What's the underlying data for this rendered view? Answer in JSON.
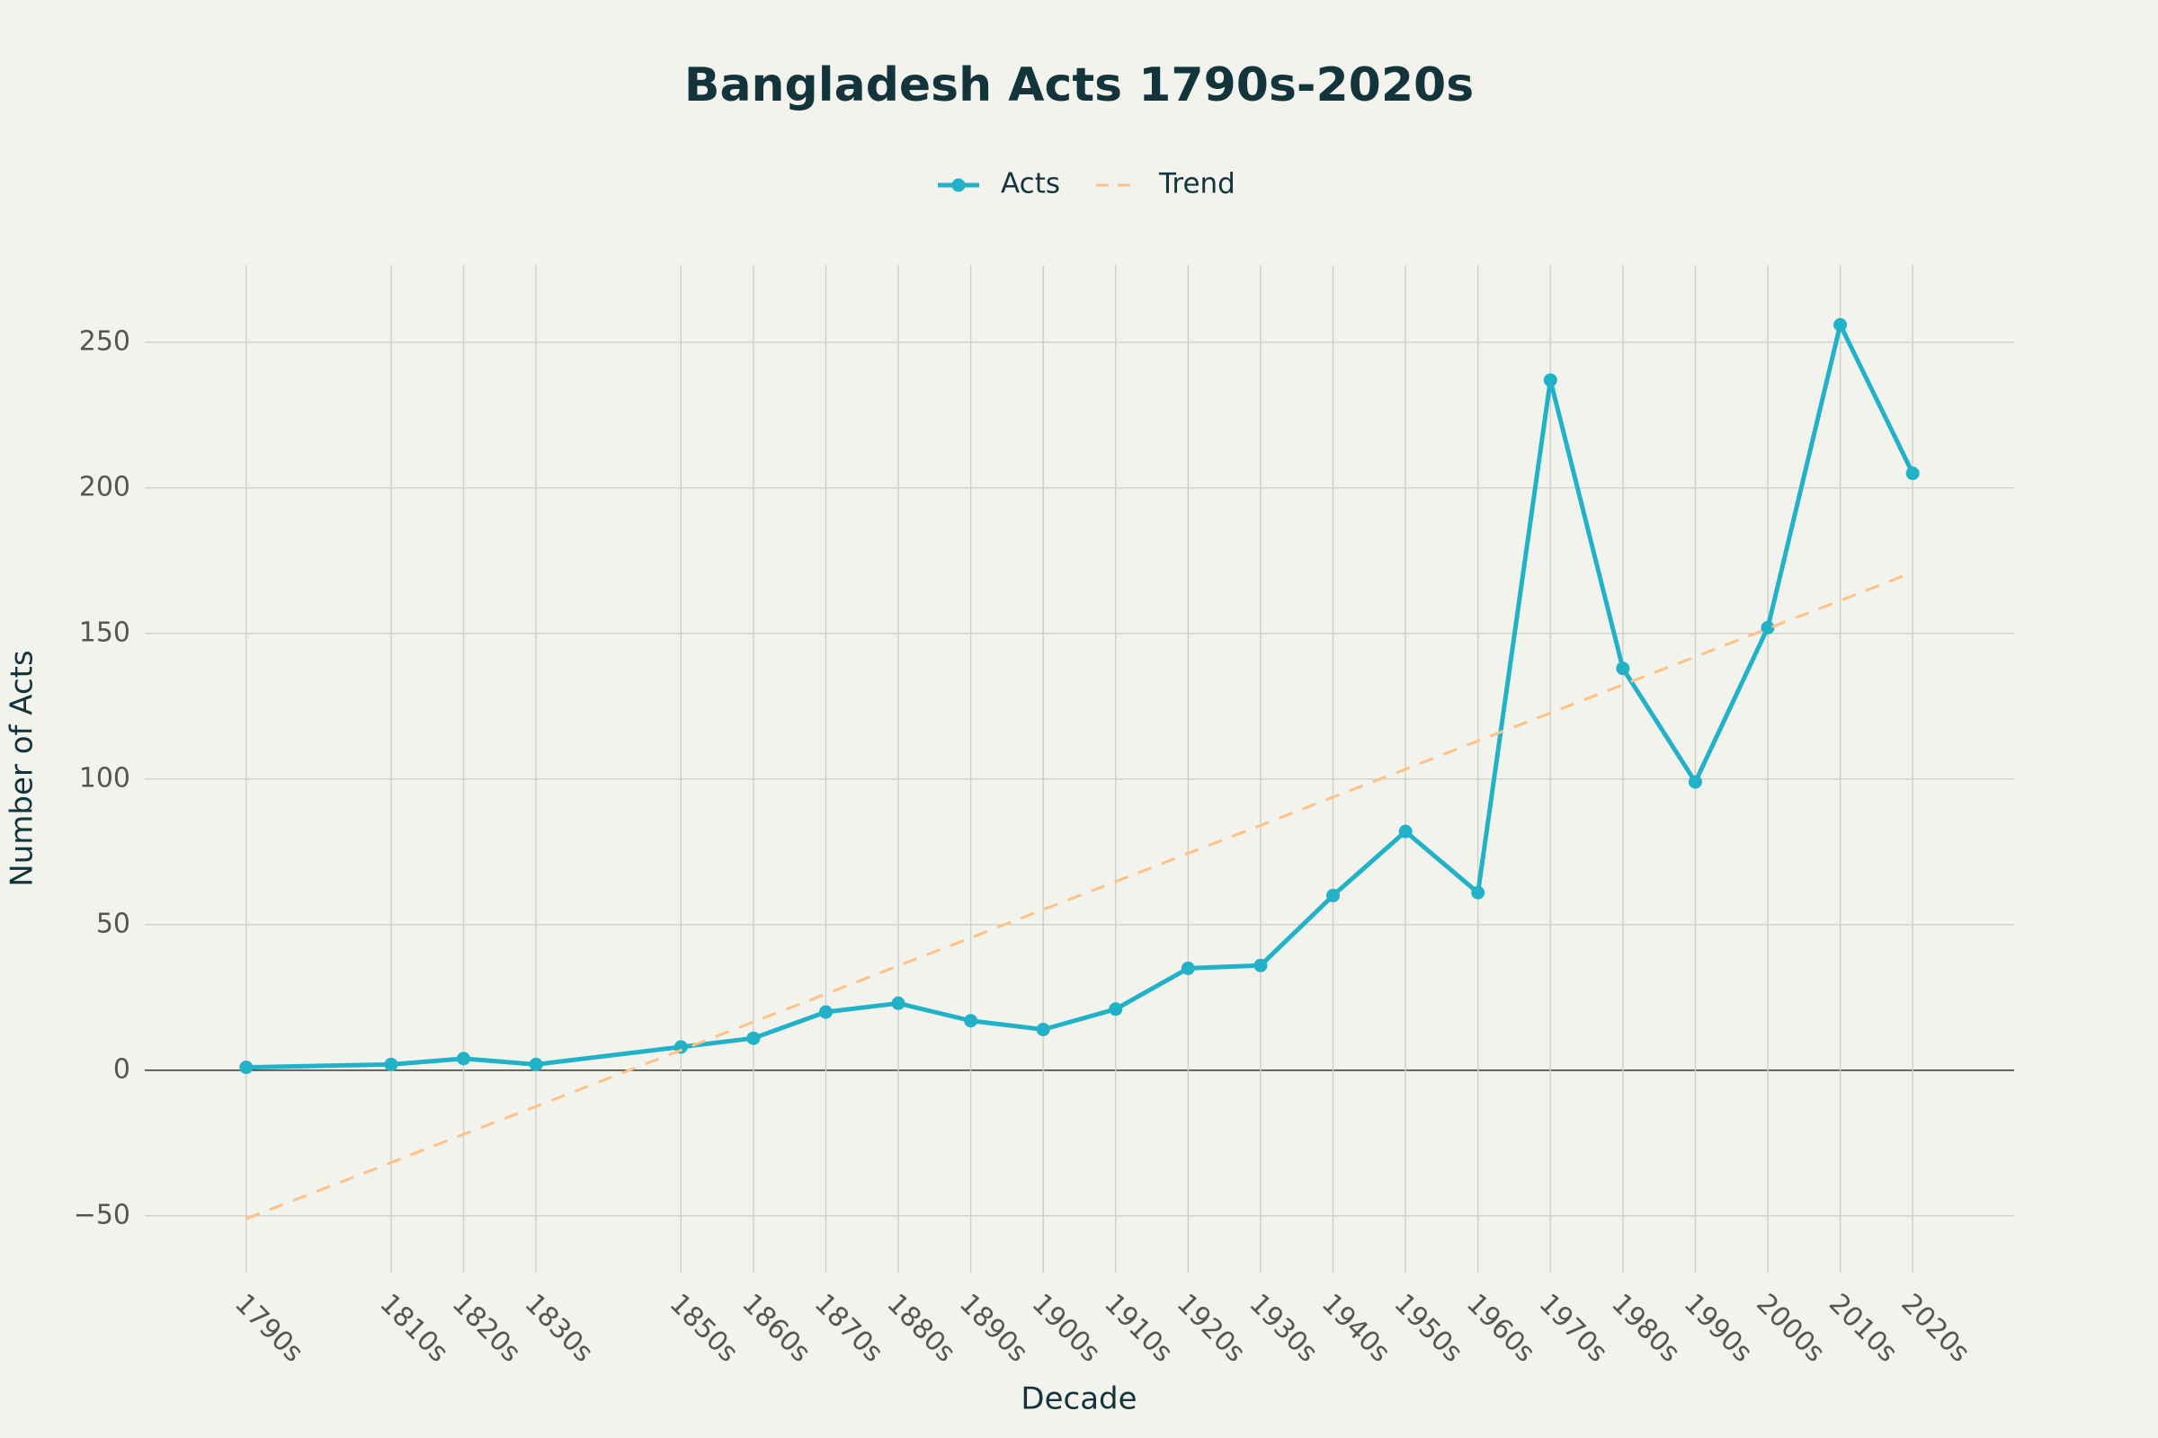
{
  "chart_data": {
    "type": "line",
    "title": "Bangladesh Acts 1790s-2020s",
    "x_label": "Decade",
    "y_label": "Number of Acts",
    "x": [
      1790,
      1810,
      1820,
      1830,
      1850,
      1860,
      1870,
      1880,
      1890,
      1900,
      1910,
      1920,
      1930,
      1940,
      1950,
      1960,
      1970,
      1980,
      1990,
      2000,
      2010,
      2020
    ],
    "series": [
      {
        "name": "Acts",
        "color": "#21b2c8",
        "style": "solid",
        "markers": true,
        "values": [
          1,
          2,
          4,
          2,
          8,
          11,
          20,
          23,
          17,
          14,
          21,
          35,
          36,
          60,
          82,
          61,
          237,
          138,
          99,
          152,
          256,
          205
        ]
      },
      {
        "name": "Trend",
        "color": "#ffc185",
        "style": "dash",
        "markers": false,
        "values": [
          -51,
          -31.7,
          -22.0,
          -12.4,
          6.9,
          16.6,
          26.2,
          35.9,
          45.5,
          55.2,
          64.8,
          74.5,
          84.1,
          93.8,
          103.4,
          113.1,
          122.7,
          132.4,
          142.0,
          151.7,
          161.3,
          171.0
        ]
      }
    ],
    "xlim": [
      1776,
      2034
    ],
    "ylim": [
      -69.5,
      276.5
    ],
    "xticks": [
      {
        "value": 1790,
        "label": "1790s"
      },
      {
        "value": 1810,
        "label": "1810s"
      },
      {
        "value": 1820,
        "label": "1820s"
      },
      {
        "value": 1830,
        "label": "1830s"
      },
      {
        "value": 1850,
        "label": "1850s"
      },
      {
        "value": 1860,
        "label": "1860s"
      },
      {
        "value": 1870,
        "label": "1870s"
      },
      {
        "value": 1880,
        "label": "1880s"
      },
      {
        "value": 1890,
        "label": "1890s"
      },
      {
        "value": 1900,
        "label": "1900s"
      },
      {
        "value": 1910,
        "label": "1910s"
      },
      {
        "value": 1920,
        "label": "1920s"
      },
      {
        "value": 1930,
        "label": "1930s"
      },
      {
        "value": 1940,
        "label": "1940s"
      },
      {
        "value": 1950,
        "label": "1950s"
      },
      {
        "value": 1960,
        "label": "1960s"
      },
      {
        "value": 1970,
        "label": "1970s"
      },
      {
        "value": 1980,
        "label": "1980s"
      },
      {
        "value": 1990,
        "label": "1990s"
      },
      {
        "value": 2000,
        "label": "2000s"
      },
      {
        "value": 2010,
        "label": "2010s"
      },
      {
        "value": 2020,
        "label": "2020s"
      }
    ],
    "yticks": [
      {
        "value": -50,
        "label": "−50"
      },
      0,
      50,
      100,
      150,
      200,
      250
    ],
    "grid": true,
    "legend": "top"
  }
}
